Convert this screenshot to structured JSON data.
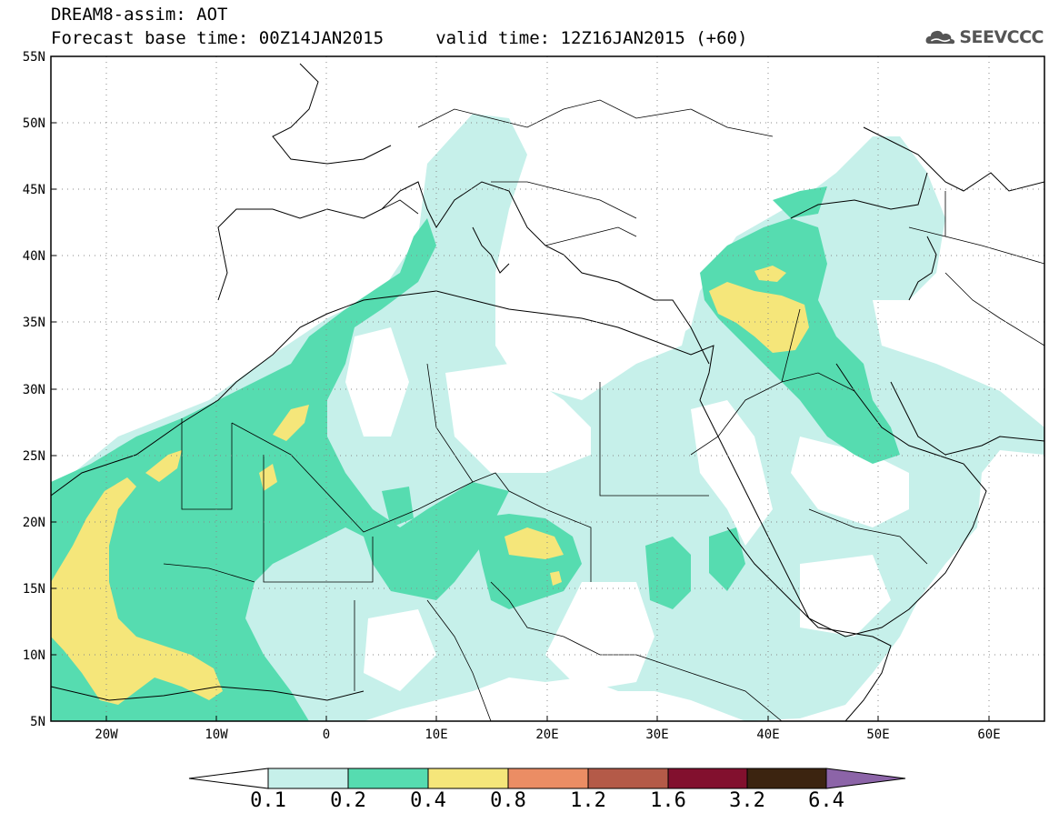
{
  "title": {
    "line1": "DREAM8-assim: AOT",
    "line2": "Forecast base time: 00Z14JAN2015     valid time: 12Z16JAN2015 (+60)"
  },
  "logo": {
    "text": "SEEVCCC",
    "icon": "cloud-icon"
  },
  "map": {
    "lon_range": [
      -25,
      65
    ],
    "lat_range": [
      5,
      55
    ],
    "lat_ticks": [
      "55N",
      "50N",
      "45N",
      "40N",
      "35N",
      "30N",
      "25N",
      "20N",
      "15N",
      "10N",
      "5N"
    ],
    "lon_ticks": [
      "20W",
      "10W",
      "0",
      "10E",
      "20E",
      "30E",
      "40E",
      "50E",
      "60E"
    ],
    "grid": "dotted"
  },
  "colorbar": {
    "labels": [
      "0.1",
      "0.2",
      "0.4",
      "0.8",
      "1.2",
      "1.6",
      "3.2",
      "6.4"
    ],
    "colors": [
      "#ffffff",
      "#c6f0ea",
      "#56dcb0",
      "#f5e67a",
      "#eb8d64",
      "#b45a48",
      "#82102e",
      "#3c2410",
      "#8c64a8"
    ]
  }
}
